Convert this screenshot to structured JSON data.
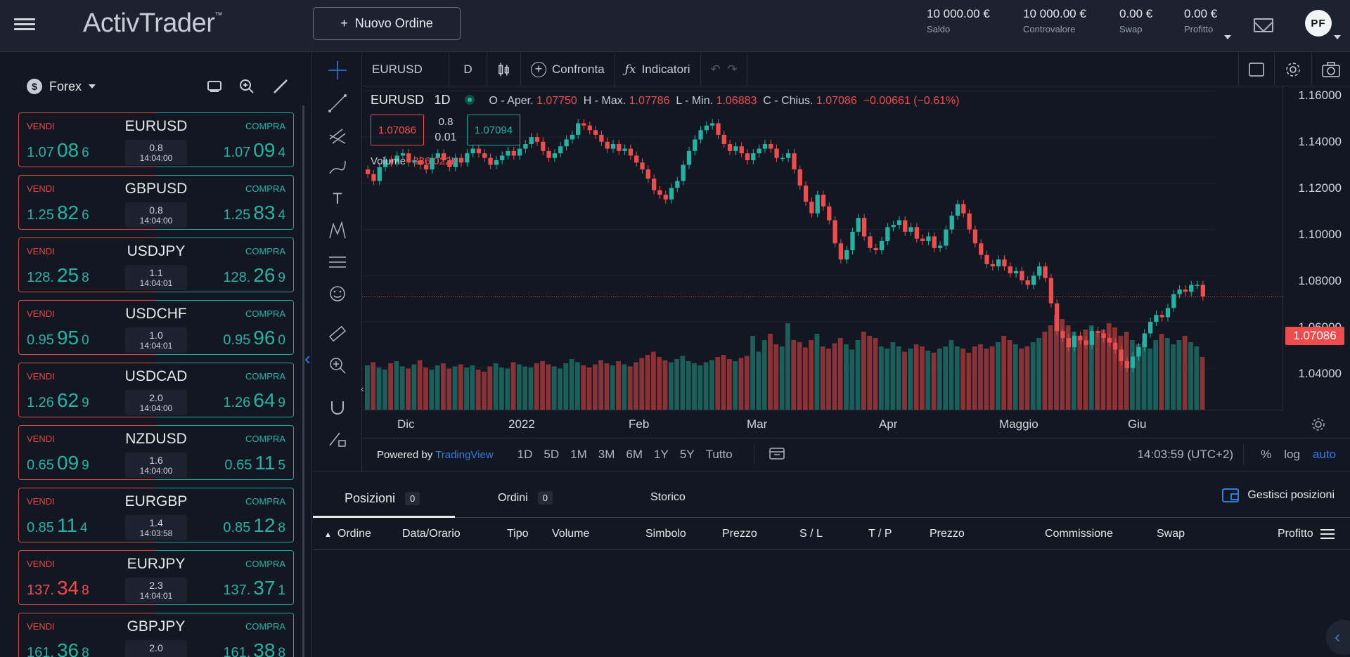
{
  "header": {
    "brand": "ActivTrader",
    "brand_tm": "™",
    "new_order_label": "Nuovo Ordine",
    "stats": [
      {
        "value": "10 000.00 €",
        "label": "Saldo"
      },
      {
        "value": "10 000.00 €",
        "label": "Controvalore"
      },
      {
        "value": "0.00 €",
        "label": "Swap"
      },
      {
        "value": "0.00 €",
        "label": "Profitto"
      }
    ],
    "avatar_initials": "PF"
  },
  "sidebar": {
    "market": "Forex",
    "instruments": [
      {
        "symbol": "EURUSD",
        "sell_label": "VENDI",
        "buy_label": "COMPRA",
        "spread": "0.8",
        "time": "14:04:00",
        "sell": [
          "1.07",
          "08",
          "6"
        ],
        "buy": [
          "1.07",
          "09",
          "4"
        ],
        "sell_color": "green"
      },
      {
        "symbol": "GBPUSD",
        "sell_label": "VENDI",
        "buy_label": "COMPRA",
        "spread": "0.8",
        "time": "14:04:00",
        "sell": [
          "1.25",
          "82",
          "6"
        ],
        "buy": [
          "1.25",
          "83",
          "4"
        ],
        "sell_color": "green"
      },
      {
        "symbol": "USDJPY",
        "sell_label": "VENDI",
        "buy_label": "COMPRA",
        "spread": "1.1",
        "time": "14:04:01",
        "sell": [
          "128.",
          "25",
          "8"
        ],
        "buy": [
          "128.",
          "26",
          "9"
        ],
        "sell_color": "green"
      },
      {
        "symbol": "USDCHF",
        "sell_label": "VENDI",
        "buy_label": "COMPRA",
        "spread": "1.0",
        "time": "14:04:01",
        "sell": [
          "0.95",
          "95",
          "0"
        ],
        "buy": [
          "0.95",
          "96",
          "0"
        ],
        "sell_color": "green"
      },
      {
        "symbol": "USDCAD",
        "sell_label": "VENDI",
        "buy_label": "COMPRA",
        "spread": "2.0",
        "time": "14:04:00",
        "sell": [
          "1.26",
          "62",
          "9"
        ],
        "buy": [
          "1.26",
          "64",
          "9"
        ],
        "sell_color": "green"
      },
      {
        "symbol": "NZDUSD",
        "sell_label": "VENDI",
        "buy_label": "COMPRA",
        "spread": "1.6",
        "time": "14:04:00",
        "sell": [
          "0.65",
          "09",
          "9"
        ],
        "buy": [
          "0.65",
          "11",
          "5"
        ],
        "sell_color": "green"
      },
      {
        "symbol": "EURGBP",
        "sell_label": "VENDI",
        "buy_label": "COMPRA",
        "spread": "1.4",
        "time": "14:03:58",
        "sell": [
          "0.85",
          "11",
          "4"
        ],
        "buy": [
          "0.85",
          "12",
          "8"
        ],
        "sell_color": "green"
      },
      {
        "symbol": "EURJPY",
        "sell_label": "VENDI",
        "buy_label": "COMPRA",
        "spread": "2.3",
        "time": "14:04:01",
        "sell": [
          "137.",
          "34",
          "8"
        ],
        "buy": [
          "137.",
          "37",
          "1"
        ],
        "sell_color": "red"
      },
      {
        "symbol": "GBPJPY",
        "sell_label": "VENDI",
        "buy_label": "COMPRA",
        "spread": "2.0",
        "time": "",
        "sell": [
          "161.",
          "36",
          "8"
        ],
        "buy": [
          "161.",
          "38",
          "8"
        ],
        "sell_color": "green"
      }
    ]
  },
  "chart": {
    "toolbar": {
      "symbol": "EURUSD",
      "interval": "D",
      "compare": "Confronta",
      "indicators": "Indicatori"
    },
    "legend": {
      "symbol": "EURUSD",
      "interval": "1D",
      "open_label": "O - Aper.",
      "open": "1.07750",
      "high_label": "H - Max.",
      "high": "1.07786",
      "low_label": "L - Min.",
      "low": "1.06883",
      "close_label": "C - Chius.",
      "close": "1.07086",
      "change": "−0.00661 (−0.61%)"
    },
    "bid": "1.07086",
    "ask": "1.07094",
    "spread": "0.8",
    "lot": "0.01",
    "volume_label": "Volume",
    "volume_value": "336.022K",
    "price_axis": [
      "1.16000",
      "1.14000",
      "1.12000",
      "1.10000",
      "1.08000",
      "1.06000",
      "1.04000"
    ],
    "last_price": "1.07086",
    "time_axis": [
      "Dic",
      "2022",
      "Feb",
      "Mar",
      "Apr",
      "Maggio",
      "Giu"
    ],
    "ranges": [
      "1D",
      "5D",
      "1M",
      "3M",
      "6M",
      "1Y",
      "5Y",
      "Tutto"
    ],
    "powered_by": "Powered by",
    "powered_brand": "TradingView",
    "clock": "14:03:59 (UTC+2)",
    "scale_options": [
      "%",
      "log",
      "auto"
    ]
  },
  "chart_data": {
    "type": "candlestick",
    "symbol": "EURUSD",
    "interval": "1D",
    "ylim": [
      1.025,
      1.165
    ],
    "closes": [
      1.124,
      1.121,
      1.127,
      1.13,
      1.129,
      1.132,
      1.133,
      1.129,
      1.13,
      1.128,
      1.126,
      1.131,
      1.133,
      1.13,
      1.127,
      1.131,
      1.129,
      1.133,
      1.135,
      1.133,
      1.131,
      1.128,
      1.13,
      1.132,
      1.134,
      1.132,
      1.135,
      1.137,
      1.14,
      1.138,
      1.134,
      1.131,
      1.133,
      1.136,
      1.139,
      1.141,
      1.146,
      1.145,
      1.143,
      1.141,
      1.138,
      1.135,
      1.137,
      1.134,
      1.135,
      1.132,
      1.129,
      1.126,
      1.122,
      1.117,
      1.115,
      1.113,
      1.118,
      1.121,
      1.128,
      1.134,
      1.139,
      1.143,
      1.145,
      1.146,
      1.141,
      1.137,
      1.134,
      1.136,
      1.133,
      1.13,
      1.133,
      1.135,
      1.137,
      1.135,
      1.131,
      1.131,
      1.133,
      1.126,
      1.119,
      1.112,
      1.107,
      1.115,
      1.11,
      1.104,
      1.094,
      1.087,
      1.091,
      1.099,
      1.105,
      1.097,
      1.092,
      1.091,
      1.095,
      1.101,
      1.102,
      1.104,
      1.099,
      1.101,
      1.096,
      1.095,
      1.097,
      1.092,
      1.093,
      1.1,
      1.106,
      1.111,
      1.107,
      1.1,
      1.094,
      1.089,
      1.085,
      1.084,
      1.087,
      1.084,
      1.081,
      1.082,
      1.078,
      1.076,
      1.08,
      1.084,
      1.079,
      1.068,
      1.056,
      1.053,
      1.049,
      1.054,
      1.052,
      1.05,
      1.056,
      1.055,
      1.053,
      1.051,
      1.048,
      1.043,
      1.04,
      1.045,
      1.049,
      1.055,
      1.06,
      1.063,
      1.062,
      1.066,
      1.072,
      1.074,
      1.073,
      1.076,
      1.076,
      1.071
    ],
    "volume_rel": [
      0.42,
      0.45,
      0.4,
      0.38,
      0.44,
      0.46,
      0.41,
      0.39,
      0.43,
      0.47,
      0.4,
      0.38,
      0.42,
      0.44,
      0.39,
      0.41,
      0.43,
      0.4,
      0.42,
      0.38,
      0.36,
      0.41,
      0.44,
      0.4,
      0.39,
      0.45,
      0.43,
      0.41,
      0.4,
      0.44,
      0.46,
      0.43,
      0.41,
      0.39,
      0.44,
      0.48,
      0.45,
      0.42,
      0.4,
      0.43,
      0.47,
      0.44,
      0.42,
      0.46,
      0.43,
      0.41,
      0.45,
      0.49,
      0.52,
      0.55,
      0.5,
      0.47,
      0.45,
      0.48,
      0.51,
      0.46,
      0.44,
      0.42,
      0.45,
      0.47,
      0.5,
      0.52,
      0.48,
      0.46,
      0.49,
      0.51,
      0.7,
      0.55,
      0.66,
      0.72,
      0.62,
      0.6,
      0.82,
      0.66,
      0.64,
      0.59,
      0.66,
      0.72,
      0.6,
      0.58,
      0.63,
      0.68,
      0.62,
      0.57,
      0.66,
      0.74,
      0.7,
      0.68,
      0.6,
      0.58,
      0.64,
      0.6,
      0.55,
      0.58,
      0.62,
      0.6,
      0.56,
      0.54,
      0.58,
      0.6,
      0.66,
      0.6,
      0.58,
      0.54,
      0.6,
      0.62,
      0.58,
      0.6,
      0.64,
      0.7,
      0.66,
      0.62,
      0.58,
      0.6,
      0.64,
      0.68,
      0.74,
      0.8,
      0.9,
      0.86,
      0.8,
      0.74,
      0.7,
      0.76,
      0.8,
      0.72,
      0.76,
      0.82,
      0.78,
      0.7,
      0.74,
      0.66,
      0.62,
      0.64,
      0.58,
      0.66,
      0.72,
      0.68,
      0.62,
      0.66,
      0.7,
      0.64,
      0.6,
      0.5
    ]
  },
  "positions": {
    "tabs": [
      {
        "label": "Posizioni",
        "count": "0"
      },
      {
        "label": "Ordini",
        "count": "0"
      },
      {
        "label": "Storico",
        "count": ""
      }
    ],
    "manage_label": "Gestisci posizioni",
    "columns": [
      "Ordine",
      "Data/Orario",
      "Tipo",
      "Volume",
      "Simbolo",
      "Prezzo",
      "S / L",
      "T / P",
      "Prezzo",
      "Commissione",
      "Swap",
      "Profitto"
    ]
  },
  "colors": {
    "up": "#22b3a3",
    "down": "#ef4d4d",
    "background": "#131722",
    "accent": "#2f7de1"
  }
}
